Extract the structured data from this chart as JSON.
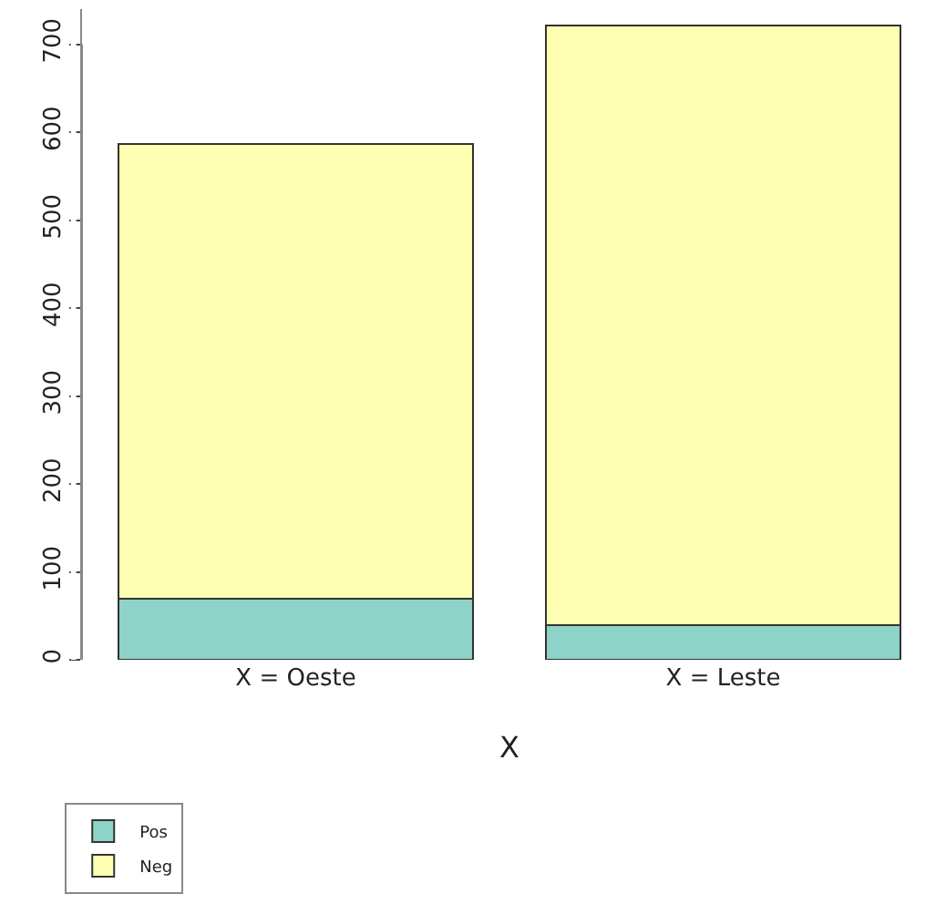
{
  "chart_data": {
    "type": "bar",
    "stacked": true,
    "xlabel": "X",
    "categories": [
      "X = Oeste",
      "X = Leste"
    ],
    "series": [
      {
        "name": "Pos",
        "color": "#8dd3c7",
        "values": [
          69,
          39
        ]
      },
      {
        "name": "Neg",
        "color": "#ffffb3",
        "values": [
          518,
          682
        ]
      }
    ],
    "ylim": [
      0,
      740
    ],
    "yticks": [
      0,
      100,
      200,
      300,
      400,
      500,
      600,
      700
    ],
    "legend": "bottom left"
  }
}
